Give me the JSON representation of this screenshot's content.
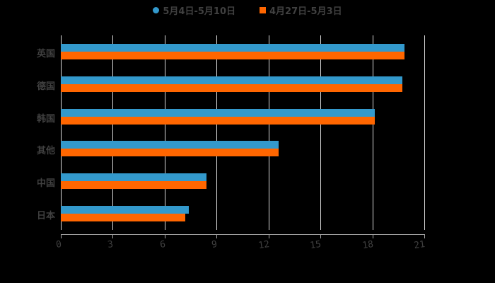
{
  "chart_data": {
    "type": "bar",
    "orientation": "horizontal",
    "title": "",
    "xlabel": "",
    "ylabel": "",
    "categories": [
      "英国",
      "德国",
      "韩国",
      "其他",
      "中国",
      "日本"
    ],
    "series": [
      {
        "name": "5月4日-5月10日",
        "color": "#3399CC",
        "values": [
          19.85,
          19.73,
          18.14,
          12.58,
          8.41,
          7.39
        ]
      },
      {
        "name": "4月27日-5月3日",
        "color": "#FF6600",
        "values": [
          19.85,
          19.73,
          18.14,
          12.58,
          8.41,
          7.19
        ]
      }
    ],
    "xlim": [
      0,
      21
    ],
    "x_ticks": [
      "0",
      "3",
      "6",
      "9",
      "12",
      "15",
      "18",
      "21"
    ],
    "grid": true,
    "legend_position": "top"
  },
  "legend": {
    "items": [
      {
        "label": "5月4日-5月10日",
        "marker": "circle",
        "color": "#3399CC"
      },
      {
        "label": "4月27日-5月3日",
        "marker": "square",
        "color": "#FF6600"
      }
    ]
  }
}
